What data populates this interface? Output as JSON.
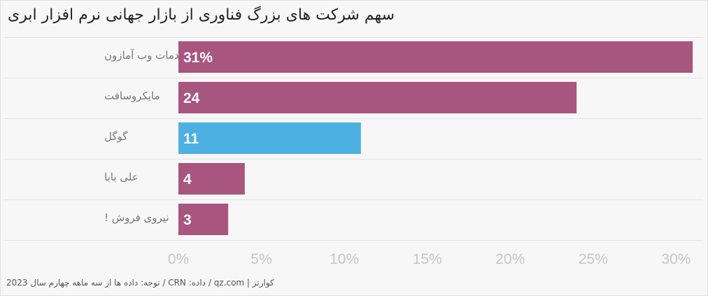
{
  "chart_data": {
    "type": "bar",
    "orientation": "horizontal",
    "title": "سهم شرکت های بزرگ فناوری از بازار جهانی نرم افزار ابری",
    "categories": [
      "خدمات وب آمازون",
      "مایکروسافت",
      "گوگل",
      "علی بابا",
      "نیروی فروش !"
    ],
    "values": [
      31,
      24,
      11,
      4,
      3
    ],
    "data_labels": [
      "31%",
      "24",
      "11",
      "4",
      "3"
    ],
    "bar_colors": [
      "#a8557f",
      "#a8557f",
      "#4db0e3",
      "#a8557f",
      "#a8557f"
    ],
    "xlim": [
      0,
      31.5
    ],
    "x_ticks": [
      0,
      5,
      10,
      15,
      20,
      25,
      30
    ],
    "x_tick_labels": [
      "0%",
      "5%",
      "10%",
      "15%",
      "20%",
      "25%",
      "30%"
    ],
    "grid": false,
    "legend": "none"
  },
  "footer": {
    "source": "توجه: داده ها از سه ماهه چهارم سال 2023 / CRN :داده / qz.com | کوارتز"
  }
}
